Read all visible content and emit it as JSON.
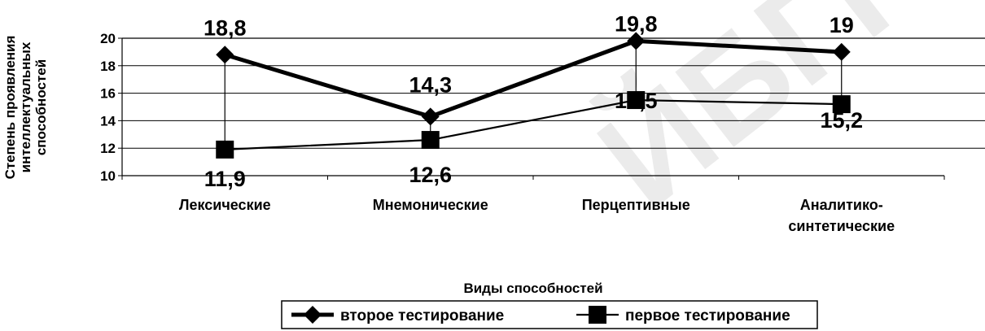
{
  "chart_data": {
    "type": "line",
    "title": "",
    "xlabel": "Виды способностей",
    "ylabel_lines": [
      "Степень проявления",
      "интеллектуальных",
      "способностей"
    ],
    "categories": [
      [
        "Лексические"
      ],
      [
        "Мнемонические"
      ],
      [
        "Перцептивные"
      ],
      [
        "Аналитико-",
        "синтетические"
      ]
    ],
    "ylim": [
      10,
      20
    ],
    "yticks": [
      10,
      12,
      14,
      16,
      18,
      20
    ],
    "grid": true,
    "legend_position": "bottom",
    "drop_lines": true,
    "series": [
      {
        "name": "второе тестирование",
        "values": [
          18.8,
          14.3,
          19.8,
          19
        ],
        "labels": [
          "18,8",
          "14,3",
          "19,8",
          "19"
        ],
        "marker": "diamond",
        "color": "#000000",
        "line": "thick"
      },
      {
        "name": "первое тестирование",
        "values": [
          11.9,
          12.6,
          15.5,
          15.2
        ],
        "labels": [
          "11,9",
          "12,6",
          "15,5",
          "15,2"
        ],
        "marker": "square",
        "color": "#000000",
        "line": "thin"
      }
    ]
  },
  "watermark": "ЙБГПУ"
}
